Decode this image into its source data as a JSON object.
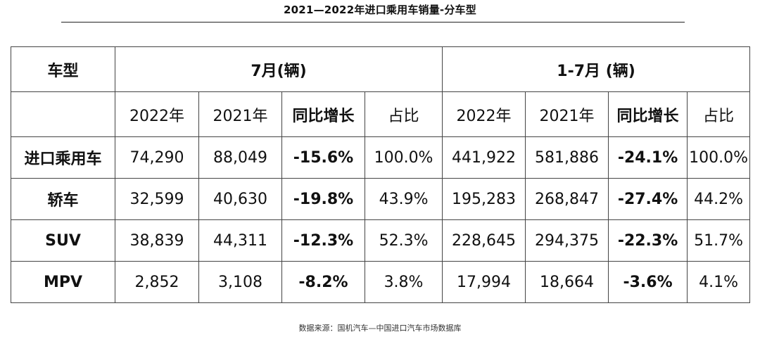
{
  "title": "2021—2022年进口乘用车销量-分车型",
  "source": "数据来源：国机汽车—中国进口汽车市场数据库",
  "chart_data": {
    "type": "table",
    "header": {
      "model_label": "车型",
      "group_july": "7月(辆)",
      "group_ytd": "1-7月 (辆)",
      "columns": [
        "2022年",
        "2021年",
        "同比增长",
        "占比",
        "2022年",
        "2021年",
        "同比增长",
        "占比"
      ]
    },
    "rows": [
      {
        "name": "进口乘用车",
        "cells": [
          "74,290",
          "88,049",
          "-15.6%",
          "100.0%",
          "441,922",
          "581,886",
          "-24.1%",
          "100.0%"
        ]
      },
      {
        "name": "轿车",
        "cells": [
          "32,599",
          "40,630",
          "-19.8%",
          "43.9%",
          "195,283",
          "268,847",
          "-27.4%",
          "44.2%"
        ]
      },
      {
        "name": "SUV",
        "cells": [
          "38,839",
          "44,311",
          "-12.3%",
          "52.3%",
          "228,645",
          "294,375",
          "-22.3%",
          "51.7%"
        ]
      },
      {
        "name": "MPV",
        "cells": [
          "2,852",
          "3,108",
          "-8.2%",
          "3.8%",
          "17,994",
          "18,664",
          "-3.6%",
          "4.1%"
        ]
      }
    ]
  }
}
